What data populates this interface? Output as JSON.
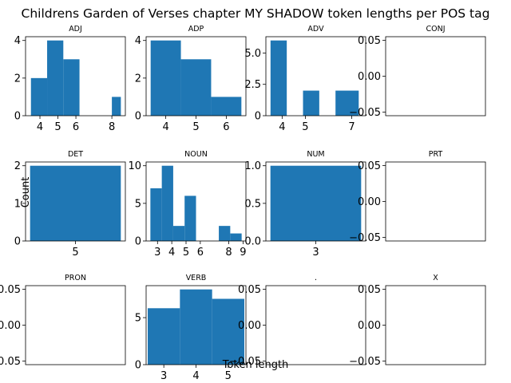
{
  "chart_data": {
    "type": "bar",
    "title": "Childrens Garden of Verses chapter MY SHADOW token lengths per POS tag",
    "xlabel": "Token length",
    "ylabel": "Count",
    "bar_color": "#1f77b4",
    "panels": [
      {
        "title": "ADJ",
        "bins": [
          [
            3.5,
            4.4,
            2
          ],
          [
            4.4,
            5.3,
            4
          ],
          [
            5.3,
            6.2,
            3
          ],
          [
            6.2,
            7.1,
            0
          ],
          [
            7.1,
            8.0,
            0
          ],
          [
            8.0,
            8.5,
            1
          ]
        ],
        "xlim": [
          3.2,
          8.75
        ],
        "ylim": [
          0,
          4.2
        ],
        "xticks": [
          4,
          5,
          6,
          8
        ],
        "yticks": [
          0,
          2,
          4
        ],
        "ytick_labels": [
          "0",
          "2",
          "4"
        ]
      },
      {
        "title": "ADP",
        "bins": [
          [
            3.5,
            4.5,
            4
          ],
          [
            4.5,
            5.5,
            3
          ],
          [
            5.5,
            6.5,
            1
          ]
        ],
        "xlim": [
          3.35,
          6.65
        ],
        "ylim": [
          0,
          4.2
        ],
        "xticks": [
          4,
          5,
          6
        ],
        "yticks": [
          0,
          2,
          4
        ],
        "ytick_labels": [
          "0",
          "2",
          "4"
        ]
      },
      {
        "title": "ADV",
        "bins": [
          [
            3.5,
            4.2,
            6
          ],
          [
            4.2,
            4.9,
            0
          ],
          [
            4.9,
            5.6,
            2
          ],
          [
            5.6,
            6.3,
            0
          ],
          [
            6.3,
            7.3,
            2
          ]
        ],
        "xlim": [
          3.3,
          7.6
        ],
        "ylim": [
          0,
          6.3
        ],
        "xticks": [
          4,
          5,
          7
        ],
        "yticks": [
          0,
          2.5,
          5
        ],
        "ytick_labels": [
          "0",
          "2.5",
          "5.0"
        ]
      },
      {
        "title": "CONJ",
        "bins": [],
        "xlim": [
          0,
          1
        ],
        "ylim": [
          -0.055,
          0.055
        ],
        "xticks": [],
        "yticks": [
          -0.05,
          0,
          0.05
        ],
        "ytick_labels": [
          "−0.05",
          "0.00",
          "0.05"
        ]
      },
      {
        "title": "DET",
        "bins": [
          [
            4.5,
            5.5,
            2
          ]
        ],
        "xlim": [
          4.45,
          5.55
        ],
        "ylim": [
          0,
          2.1
        ],
        "xticks": [
          5
        ],
        "yticks": [
          0,
          1,
          2
        ],
        "ytick_labels": [
          "0",
          "1",
          "2"
        ]
      },
      {
        "title": "NOUN",
        "bins": [
          [
            2.5,
            3.3,
            7
          ],
          [
            3.3,
            4.1,
            10
          ],
          [
            4.1,
            4.9,
            2
          ],
          [
            4.9,
            5.7,
            6
          ],
          [
            5.7,
            6.5,
            0
          ],
          [
            6.5,
            7.3,
            0
          ],
          [
            7.3,
            8.1,
            2
          ],
          [
            8.1,
            8.9,
            1
          ]
        ],
        "xlim": [
          2.2,
          9.2
        ],
        "ylim": [
          0,
          10.5
        ],
        "xticks": [
          3,
          4,
          5,
          6,
          8,
          9
        ],
        "yticks": [
          0,
          5,
          10
        ],
        "ytick_labels": [
          "0",
          "5",
          "10"
        ]
      },
      {
        "title": "NUM",
        "bins": [
          [
            2.5,
            3.5,
            1
          ]
        ],
        "xlim": [
          2.45,
          3.55
        ],
        "ylim": [
          0,
          1.05
        ],
        "xticks": [
          3
        ],
        "yticks": [
          0,
          0.5,
          1
        ],
        "ytick_labels": [
          "0.0",
          "0.5",
          "1.0"
        ]
      },
      {
        "title": "PRT",
        "bins": [],
        "xlim": [
          0,
          1
        ],
        "ylim": [
          -0.055,
          0.055
        ],
        "xticks": [],
        "yticks": [
          -0.05,
          0,
          0.05
        ],
        "ytick_labels": [
          "−0.05",
          "0.00",
          "0.05"
        ]
      },
      {
        "title": "PRON",
        "bins": [],
        "xlim": [
          0,
          1
        ],
        "ylim": [
          -0.055,
          0.055
        ],
        "xticks": [],
        "yticks": [
          -0.05,
          0,
          0.05
        ],
        "ytick_labels": [
          "−0.05",
          "0.00",
          "0.05"
        ]
      },
      {
        "title": "VERB",
        "bins": [
          [
            2.5,
            3.5,
            6
          ],
          [
            3.5,
            4.5,
            8
          ],
          [
            4.5,
            5.5,
            7
          ]
        ],
        "xlim": [
          2.45,
          5.55
        ],
        "ylim": [
          0,
          8.4
        ],
        "xticks": [
          3,
          4,
          5
        ],
        "yticks": [
          0,
          5
        ],
        "ytick_labels": [
          "0",
          "5"
        ]
      },
      {
        "title": ".",
        "bins": [],
        "xlim": [
          0,
          1
        ],
        "ylim": [
          -0.055,
          0.055
        ],
        "xticks": [],
        "yticks": [
          -0.05,
          0,
          0.05
        ],
        "ytick_labels": [
          "−0.05",
          "0.00",
          "0.05"
        ]
      },
      {
        "title": "X",
        "bins": [],
        "xlim": [
          0,
          1
        ],
        "ylim": [
          -0.055,
          0.055
        ],
        "xticks": [],
        "yticks": [
          -0.05,
          0,
          0.05
        ],
        "ytick_labels": [
          "−0.05",
          "0.00",
          "0.05"
        ]
      }
    ]
  }
}
